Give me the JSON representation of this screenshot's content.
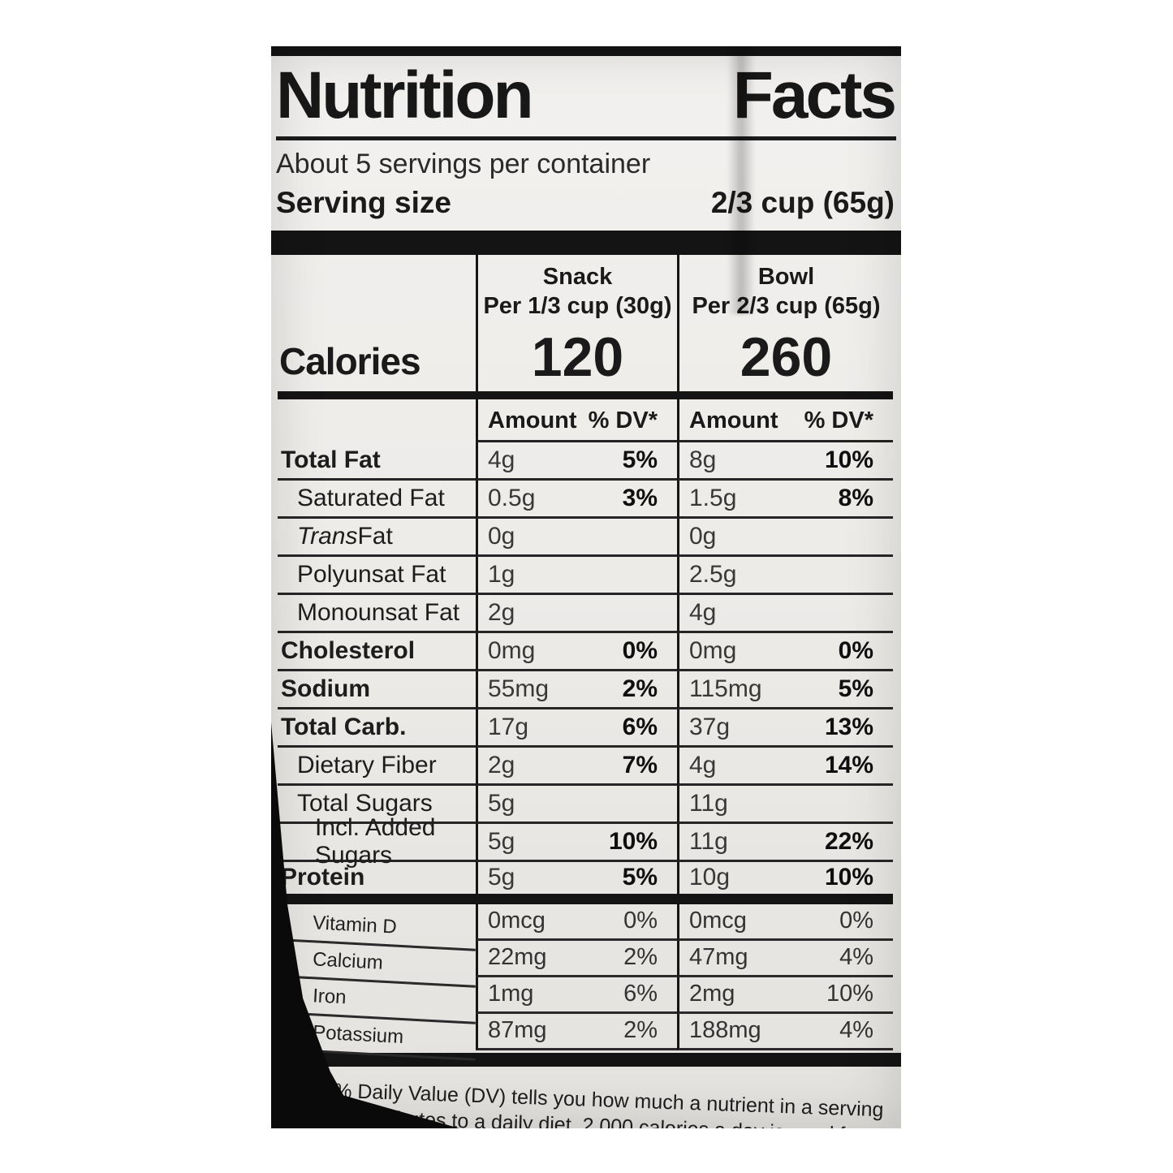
{
  "colors": {
    "label_bg": "#edebe8",
    "ink": "#1a1a1a",
    "bar": "#141414",
    "package_black": "#0a0a0a"
  },
  "header": {
    "title_word1": "Nutrition",
    "title_word2": "Facts",
    "servings": "About 5 servings per container",
    "serving_size_label": "Serving size",
    "serving_size_value": "2/3 cup (65g)"
  },
  "columns": {
    "snack": {
      "name": "Snack",
      "per": "Per 1/3 cup (30g)",
      "calories": "120"
    },
    "bowl": {
      "name": "Bowl",
      "per": "Per 2/3 cup (65g)",
      "calories": "260"
    }
  },
  "calories_label": "Calories",
  "value_header": {
    "amount": "Amount",
    "dv": "% DV*"
  },
  "main_rows": [
    {
      "label": "Total Fat",
      "a1": "4g",
      "dv1": "5%",
      "a2": "8g",
      "dv2": "10%"
    },
    {
      "label": "Saturated Fat",
      "a1": "0.5g",
      "dv1": "3%",
      "a2": "1.5g",
      "dv2": "8%"
    },
    {
      "label_em": "Trans",
      "label": " Fat",
      "a1": "0g",
      "dv1": "",
      "a2": "0g",
      "dv2": ""
    },
    {
      "label": "Polyunsat Fat",
      "a1": "1g",
      "dv1": "",
      "a2": "2.5g",
      "dv2": ""
    },
    {
      "label": "Monounsat Fat",
      "a1": "2g",
      "dv1": "",
      "a2": "4g",
      "dv2": ""
    },
    {
      "label": "Cholesterol",
      "a1": "0mg",
      "dv1": "0%",
      "a2": "0mg",
      "dv2": "0%"
    },
    {
      "label": "Sodium",
      "a1": "55mg",
      "dv1": "2%",
      "a2": "115mg",
      "dv2": "5%"
    },
    {
      "label": "Total Carb.",
      "a1": "17g",
      "dv1": "6%",
      "a2": "37g",
      "dv2": "13%"
    },
    {
      "label": "Dietary Fiber",
      "a1": "2g",
      "dv1": "7%",
      "a2": "4g",
      "dv2": "14%"
    },
    {
      "label": "Total Sugars",
      "a1": "5g",
      "dv1": "",
      "a2": "11g",
      "dv2": ""
    },
    {
      "label": "Incl. Added Sugars",
      "a1": "5g",
      "dv1": "10%",
      "a2": "11g",
      "dv2": "22%"
    },
    {
      "label": "Protein",
      "a1": "5g",
      "dv1": "5%",
      "a2": "10g",
      "dv2": "10%"
    }
  ],
  "micro_rows": [
    {
      "label": "Vitamin D",
      "a1": "0mcg",
      "dv1": "0%",
      "a2": "0mcg",
      "dv2": "0%"
    },
    {
      "label": "Calcium",
      "a1": "22mg",
      "dv1": "2%",
      "a2": "47mg",
      "dv2": "4%"
    },
    {
      "label": "Iron",
      "a1": "1mg",
      "dv1": "6%",
      "a2": "2mg",
      "dv2": "10%"
    },
    {
      "label": "Potassium",
      "a1": "87mg",
      "dv1": "2%",
      "a2": "188mg",
      "dv2": "4%"
    }
  ],
  "footnote": "* The % Daily Value (DV) tells you how much a nutrient in a serving of food contributes to a daily diet. 2,000 calories a day is used for general nutrition advice."
}
